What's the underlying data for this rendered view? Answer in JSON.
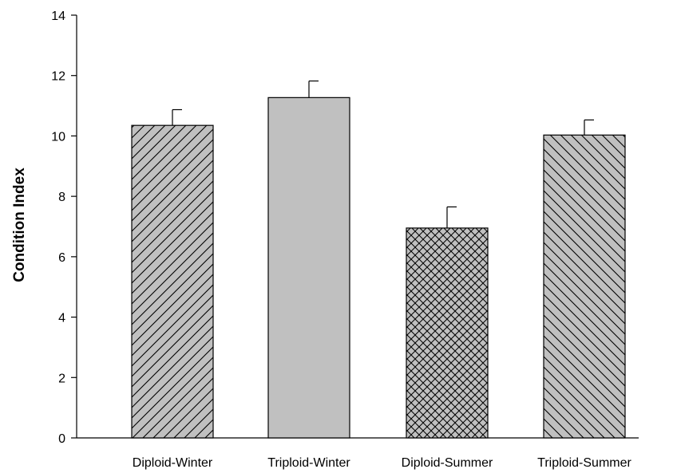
{
  "chart_data": {
    "type": "bar",
    "title": "",
    "xlabel": "",
    "ylabel": "Condition Index",
    "ylim": [
      0,
      14
    ],
    "yticks": [
      0,
      2,
      4,
      6,
      8,
      10,
      12,
      14
    ],
    "grid": false,
    "legend": "none",
    "categories": [
      "Diploid-Winter",
      "Triploid-Winter",
      "Diploid-Summer",
      "Triploid-Summer"
    ],
    "values": [
      10.35,
      11.27,
      6.95,
      10.03
    ],
    "error_upper": [
      0.52,
      0.55,
      0.7,
      0.5
    ],
    "bar_patterns": [
      "diagonal-forward",
      "solid",
      "crosshatch",
      "diagonal-backward"
    ],
    "bar_fill": "#c0c0c0",
    "stroke": "#000000"
  }
}
